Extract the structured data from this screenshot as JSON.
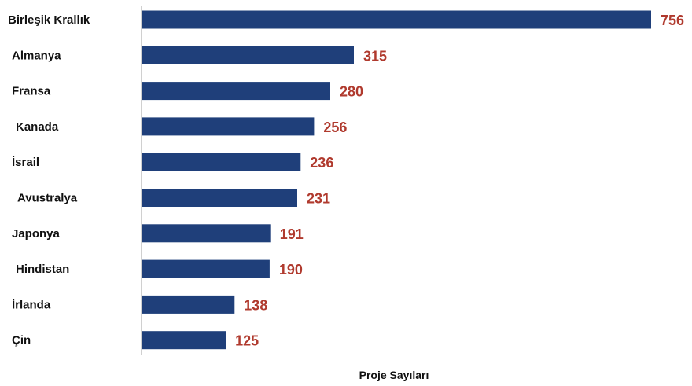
{
  "chart_data": {
    "type": "bar",
    "orientation": "horizontal",
    "categories": [
      "Birleşik Krallık",
      "Almanya",
      "Fransa",
      "Kanada",
      "İsrail",
      "Avustralya",
      "Japonya",
      "Hindistan",
      "İrlanda",
      "Çin"
    ],
    "values": [
      756,
      315,
      280,
      256,
      236,
      231,
      191,
      190,
      138,
      125
    ],
    "xlabel": "Proje Sayıları",
    "ylabel": "",
    "xlim": [
      0,
      756
    ],
    "grid": false,
    "legend": false,
    "data_labels": true
  },
  "colors": {
    "bar": "#1f3f7a",
    "value_label": "#b03a2e",
    "axis_line": "#d0d0d0"
  }
}
